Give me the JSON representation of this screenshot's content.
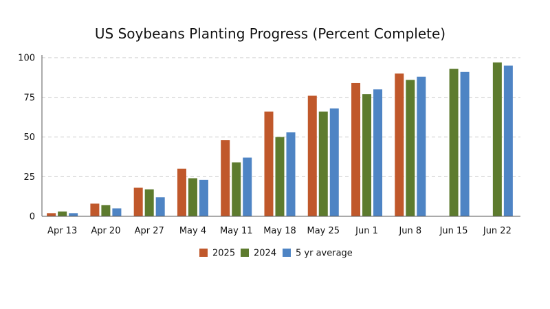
{
  "chart_data": {
    "type": "bar",
    "title": "US Soybeans Planting Progress (Percent Complete)",
    "xlabel": "",
    "ylabel": "",
    "ylim": [
      0,
      100
    ],
    "yticks": [
      "0",
      "25",
      "50",
      "75",
      "100"
    ],
    "grid": true,
    "legend_position": "bottom",
    "categories": [
      "Apr 13",
      "Apr 20",
      "Apr 27",
      "May 4",
      "May 11",
      "May 18",
      "May 25",
      "Jun 1",
      "Jun 8",
      "Jun 15",
      "Jun 22"
    ],
    "series": [
      {
        "name": "2025",
        "color": "#c0582b",
        "values": [
          2,
          8,
          18,
          30,
          48,
          66,
          76,
          84,
          90,
          null,
          null
        ]
      },
      {
        "name": "2024",
        "color": "#5d7b2e",
        "values": [
          3,
          7,
          17,
          24,
          34,
          50,
          66,
          77,
          86,
          93,
          97
        ]
      },
      {
        "name": "5 yr average",
        "color": "#4e84c4",
        "values": [
          2,
          5,
          12,
          23,
          37,
          53,
          68,
          80,
          88,
          91,
          95
        ]
      }
    ]
  }
}
